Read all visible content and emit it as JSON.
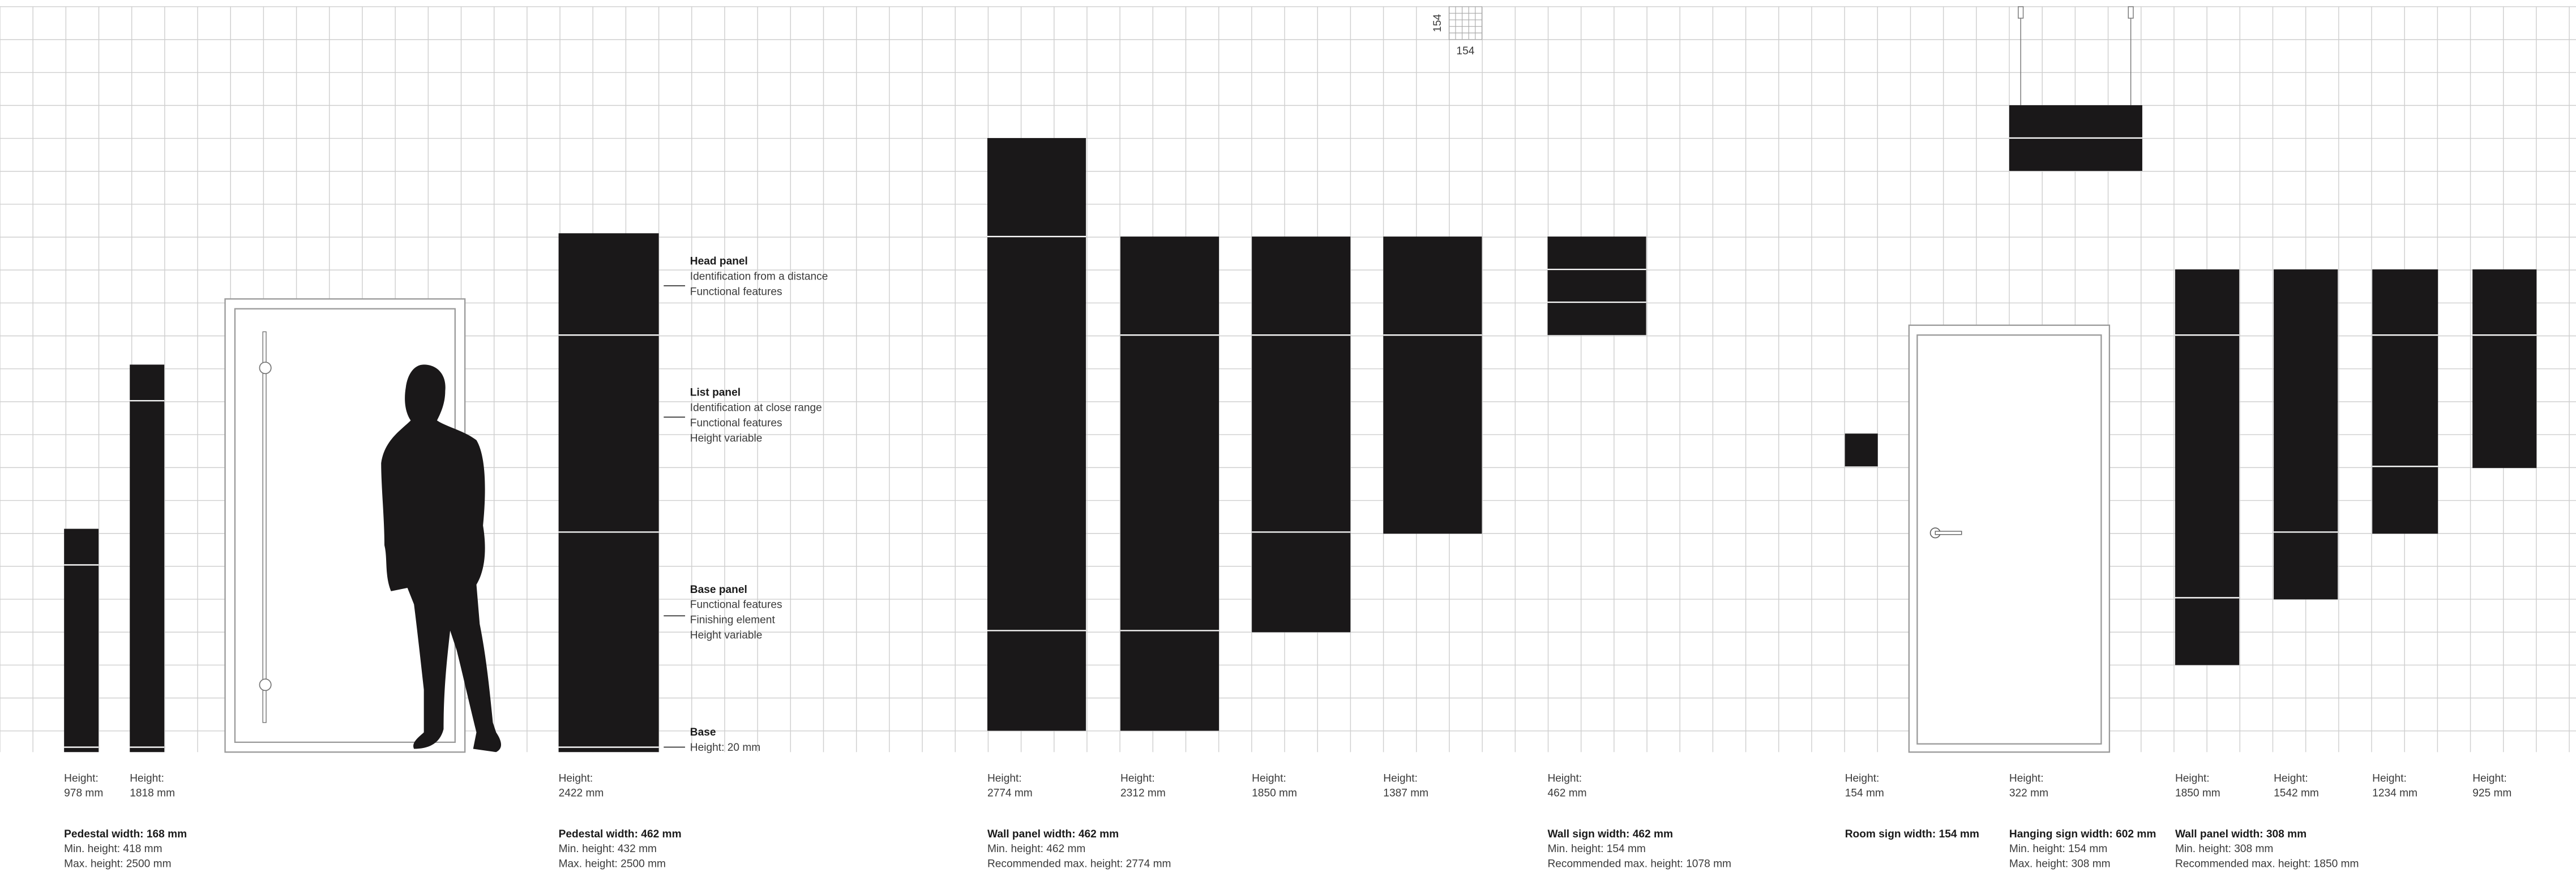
{
  "scale_labels": [
    "154",
    "154"
  ],
  "annotations": [
    {
      "title": "Head panel",
      "lines": [
        "Identification from a distance",
        "Functional features"
      ]
    },
    {
      "title": "List panel",
      "lines": [
        "Identification at close range",
        "Functional features",
        "Height variable"
      ]
    },
    {
      "title": "Base panel",
      "lines": [
        "Functional features",
        "Finishing element",
        "Height variable"
      ]
    },
    {
      "title": "Base",
      "lines": [
        "Height: 20 mm"
      ]
    }
  ],
  "heights": [
    {
      "label": "Height:",
      "value": "978 mm"
    },
    {
      "label": "Height:",
      "value": "1818 mm"
    },
    {
      "label": "Height:",
      "value": "2422 mm"
    },
    {
      "label": "Height:",
      "value": "2774 mm"
    },
    {
      "label": "Height:",
      "value": "2312 mm"
    },
    {
      "label": "Height:",
      "value": "1850 mm"
    },
    {
      "label": "Height:",
      "value": "1387 mm"
    },
    {
      "label": "Height:",
      "value": "462 mm"
    },
    {
      "label": "Height:",
      "value": "154 mm"
    },
    {
      "label": "Height:",
      "value": "322 mm"
    },
    {
      "label": "Height:",
      "value": "1850 mm"
    },
    {
      "label": "Height:",
      "value": "1542 mm"
    },
    {
      "label": "Height:",
      "value": "1234 mm"
    },
    {
      "label": "Height:",
      "value": "925 mm"
    }
  ],
  "groups": [
    {
      "title": "Pedestal width: 168 mm",
      "lines": [
        "Min. height: 418 mm",
        "Max. height: 2500 mm"
      ]
    },
    {
      "title": "Pedestal width: 462 mm",
      "lines": [
        "Min. height: 432 mm",
        "Max. height: 2500 mm"
      ]
    },
    {
      "title": "Wall panel width: 462 mm",
      "lines": [
        "Min. height: 462 mm",
        "Recommended max. height: 2774 mm"
      ]
    },
    {
      "title": "Wall sign width: 462 mm",
      "lines": [
        "Min. height: 154 mm",
        "Recommended max. height: 1078 mm"
      ]
    },
    {
      "title": "Room sign width: 154 mm",
      "lines": []
    },
    {
      "title": "Hanging sign width: 602 mm",
      "lines": [
        "Min. height: 154 mm",
        "Max. height: 308 mm"
      ]
    },
    {
      "title": "Wall panel width: 308 mm",
      "lines": [
        "Min. height: 308 mm",
        "Recommended max. height: 1850 mm"
      ]
    }
  ]
}
